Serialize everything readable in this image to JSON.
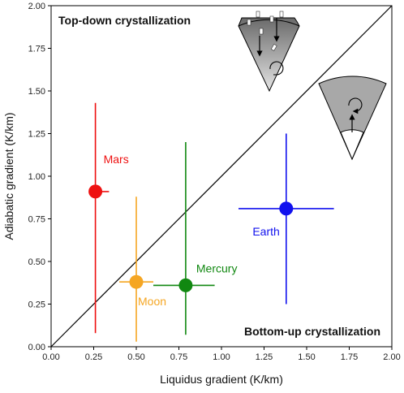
{
  "chart_data": {
    "type": "scatter",
    "xlabel": "Liquidus gradient (K/km)",
    "ylabel": "Adiabatic gradient (K/km)",
    "xlim": [
      0,
      2
    ],
    "ylim": [
      0,
      2
    ],
    "x_ticks": [
      "0.00",
      "0.25",
      "0.50",
      "0.75",
      "1.00",
      "1.25",
      "1.50",
      "1.75",
      "2.00"
    ],
    "y_ticks": [
      "0.00",
      "0.25",
      "0.50",
      "0.75",
      "1.00",
      "1.25",
      "1.50",
      "1.75",
      "2.00"
    ],
    "grid": false,
    "reference_line": {
      "x": [
        0,
        2
      ],
      "y": [
        0,
        2
      ]
    },
    "region_labels": {
      "upper_left": "Top-down crystallization",
      "lower_right": "Bottom-up crystallization"
    },
    "points": [
      {
        "name": "Mars",
        "x": 0.26,
        "y": 0.91,
        "xerr": [
          0.23,
          0.34
        ],
        "yerr": [
          0.08,
          1.43
        ],
        "color": "#ee1111",
        "label_pos": "upper-right"
      },
      {
        "name": "Moon",
        "x": 0.5,
        "y": 0.38,
        "xerr": [
          0.4,
          0.6
        ],
        "yerr": [
          0.03,
          0.88
        ],
        "color": "#f5a623",
        "label_pos": "lower-right"
      },
      {
        "name": "Mercury",
        "x": 0.79,
        "y": 0.36,
        "xerr": [
          0.6,
          0.96
        ],
        "yerr": [
          0.07,
          1.2
        ],
        "color": "#118811",
        "label_pos": "upper-right"
      },
      {
        "name": "Earth",
        "x": 1.38,
        "y": 0.81,
        "xerr": [
          1.1,
          1.66
        ],
        "yerr": [
          0.25,
          1.25
        ],
        "color": "#1111ee",
        "label_pos": "lower-left"
      }
    ]
  },
  "insets": {
    "top_down": "top-down-crystallization-schematic",
    "bottom_up": "bottom-up-crystallization-schematic"
  }
}
